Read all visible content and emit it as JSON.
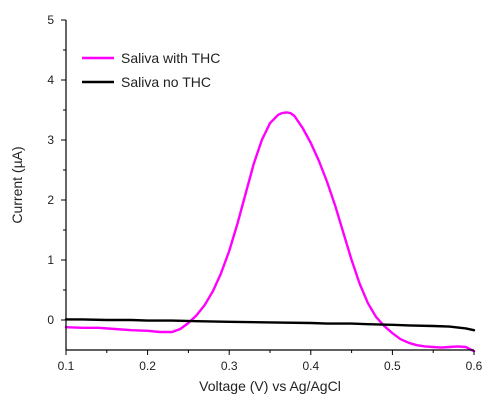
{
  "chart_data": {
    "type": "line",
    "xlabel": "Voltage (V) vs Ag/AgCl",
    "ylabel": "Current (µA)",
    "xlim": [
      0.1,
      0.6
    ],
    "ylim": [
      -0.5,
      5
    ],
    "xticks": [
      0.1,
      0.2,
      0.3,
      0.4,
      0.5,
      0.6
    ],
    "yticks": [
      0,
      1,
      2,
      3,
      4,
      5
    ],
    "xtick_labels": [
      "0.1",
      "0.2",
      "0.3",
      "0.4",
      "0.5",
      "0.6"
    ],
    "ytick_labels": [
      "0",
      "1",
      "2",
      "3",
      "4",
      "5"
    ],
    "grid": false,
    "legend_position": "top-left",
    "series": [
      {
        "name": "Saliva with THC",
        "color": "#ff00ff",
        "x": [
          0.1,
          0.12,
          0.14,
          0.16,
          0.18,
          0.2,
          0.215,
          0.23,
          0.24,
          0.25,
          0.26,
          0.27,
          0.28,
          0.29,
          0.3,
          0.31,
          0.32,
          0.33,
          0.34,
          0.35,
          0.36,
          0.365,
          0.37,
          0.375,
          0.38,
          0.39,
          0.4,
          0.41,
          0.42,
          0.43,
          0.44,
          0.45,
          0.46,
          0.47,
          0.48,
          0.49,
          0.5,
          0.51,
          0.52,
          0.53,
          0.54,
          0.55,
          0.56,
          0.57,
          0.58,
          0.59,
          0.6
        ],
        "y": [
          -0.12,
          -0.13,
          -0.13,
          -0.15,
          -0.17,
          -0.18,
          -0.2,
          -0.2,
          -0.15,
          -0.05,
          0.08,
          0.25,
          0.48,
          0.78,
          1.15,
          1.6,
          2.1,
          2.6,
          3.0,
          3.28,
          3.42,
          3.45,
          3.46,
          3.45,
          3.4,
          3.2,
          2.95,
          2.65,
          2.3,
          1.9,
          1.45,
          1.0,
          0.6,
          0.28,
          0.05,
          -0.1,
          -0.22,
          -0.32,
          -0.38,
          -0.42,
          -0.44,
          -0.45,
          -0.46,
          -0.45,
          -0.44,
          -0.45,
          -0.52
        ]
      },
      {
        "name": "Saliva no THC",
        "color": "#000000",
        "x": [
          0.1,
          0.12,
          0.15,
          0.18,
          0.2,
          0.23,
          0.26,
          0.3,
          0.35,
          0.4,
          0.42,
          0.45,
          0.47,
          0.5,
          0.52,
          0.55,
          0.57,
          0.59,
          0.6
        ],
        "y": [
          0.01,
          0.01,
          0.0,
          0.0,
          -0.01,
          -0.01,
          -0.02,
          -0.03,
          -0.04,
          -0.05,
          -0.06,
          -0.06,
          -0.07,
          -0.08,
          -0.09,
          -0.1,
          -0.11,
          -0.14,
          -0.17
        ]
      }
    ]
  }
}
